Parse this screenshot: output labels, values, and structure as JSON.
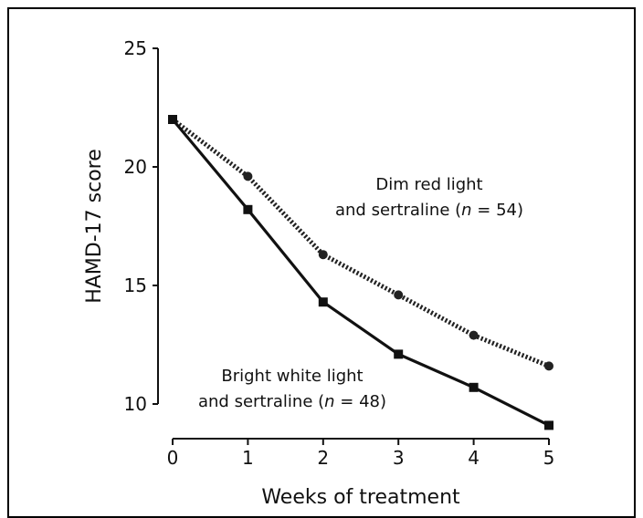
{
  "chart_data": {
    "type": "line",
    "xlabel": "Weeks of treatment",
    "ylabel": "HAMD-17 score",
    "xlim": [
      0,
      5
    ],
    "ylim": [
      10,
      25
    ],
    "x_ticks": [
      0,
      1,
      2,
      3,
      4,
      5
    ],
    "y_ticks": [
      10,
      15,
      20,
      25
    ],
    "grid": false,
    "series": [
      {
        "name": "Dim red light and sertraline (n = 54)",
        "style": "dotted",
        "color": "#222222",
        "x": [
          0,
          1,
          2,
          3,
          4,
          5
        ],
        "values": [
          22.0,
          19.6,
          16.3,
          14.6,
          12.9,
          11.6
        ]
      },
      {
        "name": "Bright white light and sertraline (n = 48)",
        "style": "solid",
        "color": "#111111",
        "x": [
          0,
          1,
          2,
          3,
          4,
          5
        ],
        "values": [
          22.0,
          18.2,
          14.3,
          12.1,
          10.7,
          9.1
        ]
      }
    ],
    "annotations": [
      {
        "lines": [
          [
            {
              "text": "Dim red light"
            }
          ],
          [
            {
              "text": "and sertraline ("
            },
            {
              "text": "n",
              "italic": true
            },
            {
              "text": " = 54)"
            }
          ]
        ]
      },
      {
        "lines": [
          [
            {
              "text": "Bright white light"
            }
          ],
          [
            {
              "text": "and sertraline ("
            },
            {
              "text": "n",
              "italic": true
            },
            {
              "text": " = 48)"
            }
          ]
        ]
      }
    ]
  }
}
